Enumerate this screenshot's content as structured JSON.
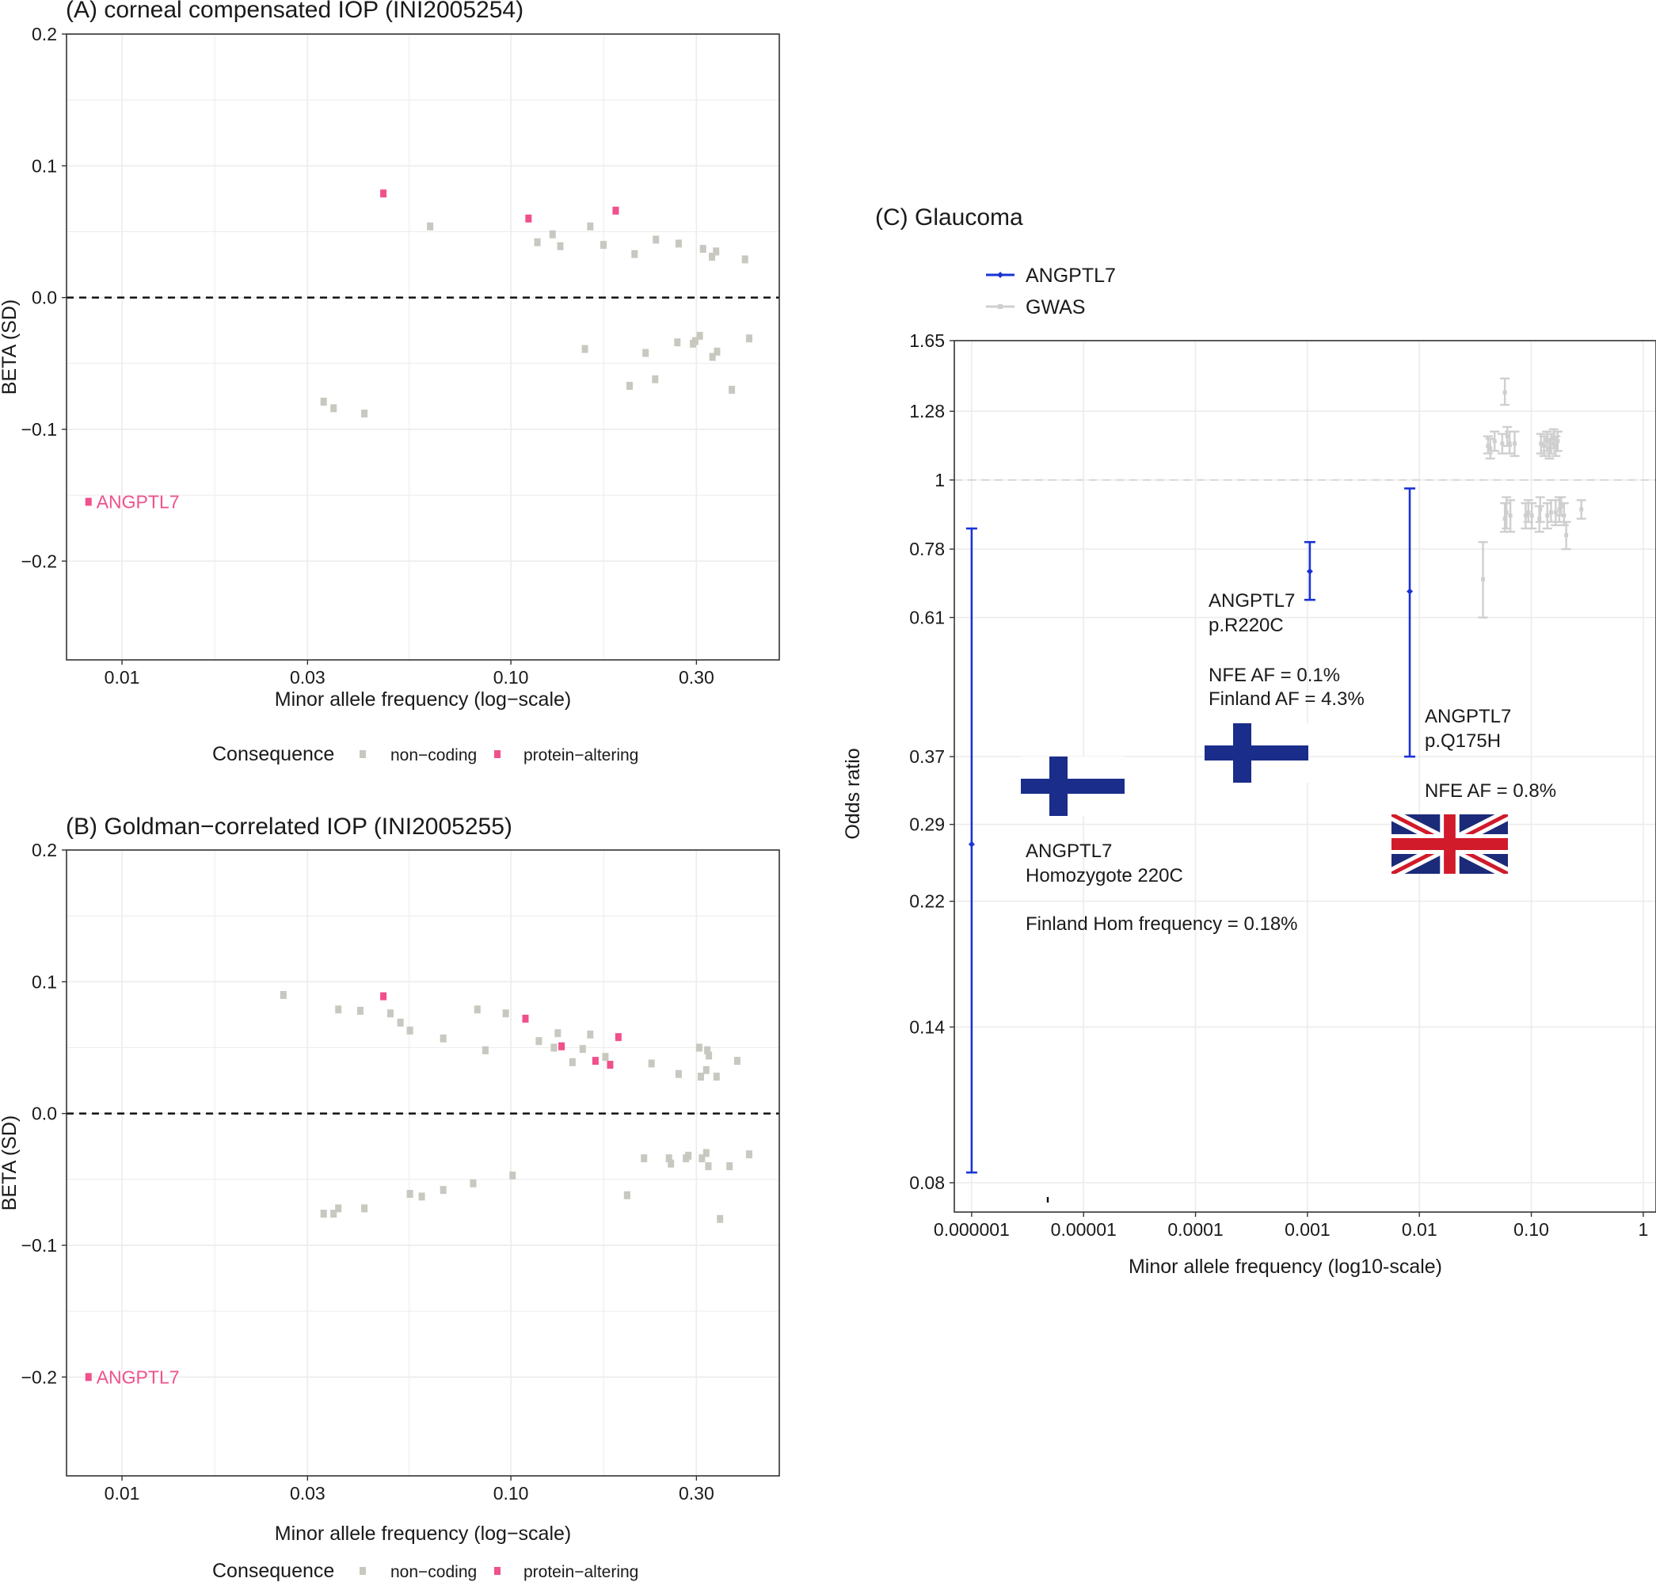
{
  "colors": {
    "non_coding": "#c8c8c0",
    "protein_altering": "#f0508c",
    "angptl7_line": "#1a33d6",
    "gwas_line": "#cfcfcf",
    "finland_blue": "#1a2d8a",
    "uk_blue": "#1c2a7a",
    "uk_red": "#d11a2a",
    "grid": "#ececec"
  },
  "legend": {
    "title": "Consequence",
    "items": [
      {
        "key": "non-coding",
        "label": "non−coding"
      },
      {
        "key": "protein-altering",
        "label": "protein−altering"
      }
    ]
  },
  "flags": [
    {
      "icon": "finland-flag-icon",
      "near": "ANGPTL7 Homozygote 220C"
    },
    {
      "icon": "finland-flag-icon",
      "near": "ANGPTL7 p.R220C"
    },
    {
      "icon": "uk-flag-icon",
      "near": "ANGPTL7 p.Q175H"
    }
  ],
  "chart_data": [
    {
      "id": "A",
      "type": "scatter",
      "title": "(A) corneal compensated IOP (INI2005254)",
      "xlabel": "Minor allele frequency (log−scale)",
      "ylabel": "BETA (SD)",
      "x_scale": "log10",
      "xlim": [
        0.0072,
        0.49
      ],
      "ylim": [
        -0.275,
        0.2
      ],
      "x_ticks": [
        {
          "value": 0.01,
          "label": "0.01"
        },
        {
          "value": 0.03,
          "label": "0.03"
        },
        {
          "value": 0.1,
          "label": "0.10"
        },
        {
          "value": 0.3,
          "label": "0.30"
        }
      ],
      "y_ticks": [
        {
          "value": 0.2,
          "label": "0.2"
        },
        {
          "value": 0.1,
          "label": "0.1"
        },
        {
          "value": 0.0,
          "label": "0.0"
        },
        {
          "value": -0.1,
          "label": "−0.1"
        },
        {
          "value": -0.2,
          "label": "−0.2"
        }
      ],
      "reference_line_y": 0,
      "grid": true,
      "legend_position": "bottom",
      "points": [
        {
          "x": 0.0082,
          "y": -0.155,
          "c": "protein-altering",
          "label": "ANGPTL7"
        },
        {
          "x": 0.047,
          "y": 0.079,
          "c": "protein-altering"
        },
        {
          "x": 0.111,
          "y": 0.06,
          "c": "protein-altering"
        },
        {
          "x": 0.186,
          "y": 0.066,
          "c": "protein-altering"
        },
        {
          "x": 0.062,
          "y": 0.054,
          "c": "non-coding"
        },
        {
          "x": 0.117,
          "y": 0.042,
          "c": "non-coding"
        },
        {
          "x": 0.128,
          "y": 0.048,
          "c": "non-coding"
        },
        {
          "x": 0.134,
          "y": 0.039,
          "c": "non-coding"
        },
        {
          "x": 0.16,
          "y": 0.054,
          "c": "non-coding"
        },
        {
          "x": 0.173,
          "y": 0.04,
          "c": "non-coding"
        },
        {
          "x": 0.208,
          "y": 0.033,
          "c": "non-coding"
        },
        {
          "x": 0.236,
          "y": 0.044,
          "c": "non-coding"
        },
        {
          "x": 0.27,
          "y": 0.041,
          "c": "non-coding"
        },
        {
          "x": 0.312,
          "y": 0.037,
          "c": "non-coding"
        },
        {
          "x": 0.329,
          "y": 0.031,
          "c": "non-coding"
        },
        {
          "x": 0.337,
          "y": 0.035,
          "c": "non-coding"
        },
        {
          "x": 0.4,
          "y": 0.029,
          "c": "non-coding"
        },
        {
          "x": 0.033,
          "y": -0.079,
          "c": "non-coding"
        },
        {
          "x": 0.035,
          "y": -0.084,
          "c": "non-coding"
        },
        {
          "x": 0.042,
          "y": -0.088,
          "c": "non-coding"
        },
        {
          "x": 0.155,
          "y": -0.039,
          "c": "non-coding"
        },
        {
          "x": 0.202,
          "y": -0.067,
          "c": "non-coding"
        },
        {
          "x": 0.222,
          "y": -0.042,
          "c": "non-coding"
        },
        {
          "x": 0.235,
          "y": -0.062,
          "c": "non-coding"
        },
        {
          "x": 0.268,
          "y": -0.034,
          "c": "non-coding"
        },
        {
          "x": 0.294,
          "y": -0.035,
          "c": "non-coding"
        },
        {
          "x": 0.298,
          "y": -0.033,
          "c": "non-coding"
        },
        {
          "x": 0.306,
          "y": -0.029,
          "c": "non-coding"
        },
        {
          "x": 0.33,
          "y": -0.045,
          "c": "non-coding"
        },
        {
          "x": 0.339,
          "y": -0.041,
          "c": "non-coding"
        },
        {
          "x": 0.37,
          "y": -0.07,
          "c": "non-coding"
        },
        {
          "x": 0.41,
          "y": -0.031,
          "c": "non-coding"
        }
      ]
    },
    {
      "id": "B",
      "type": "scatter",
      "title": "(B) Goldman−correlated IOP (INI2005255)",
      "xlabel": "Minor allele frequency (log−scale)",
      "ylabel": "BETA (SD)",
      "x_scale": "log10",
      "xlim": [
        0.0072,
        0.49
      ],
      "ylim": [
        -0.275,
        0.2
      ],
      "x_ticks": [
        {
          "value": 0.01,
          "label": "0.01"
        },
        {
          "value": 0.03,
          "label": "0.03"
        },
        {
          "value": 0.1,
          "label": "0.10"
        },
        {
          "value": 0.3,
          "label": "0.30"
        }
      ],
      "y_ticks": [
        {
          "value": 0.2,
          "label": "0.2"
        },
        {
          "value": 0.1,
          "label": "0.1"
        },
        {
          "value": 0.0,
          "label": "0.0"
        },
        {
          "value": -0.1,
          "label": "−0.1"
        },
        {
          "value": -0.2,
          "label": "−0.2"
        }
      ],
      "reference_line_y": 0,
      "grid": true,
      "legend_position": "bottom",
      "points": [
        {
          "x": 0.0082,
          "y": -0.2,
          "c": "protein-altering",
          "label": "ANGPTL7"
        },
        {
          "x": 0.047,
          "y": 0.089,
          "c": "protein-altering"
        },
        {
          "x": 0.109,
          "y": 0.072,
          "c": "protein-altering"
        },
        {
          "x": 0.135,
          "y": 0.051,
          "c": "protein-altering"
        },
        {
          "x": 0.165,
          "y": 0.04,
          "c": "protein-altering"
        },
        {
          "x": 0.18,
          "y": 0.037,
          "c": "protein-altering"
        },
        {
          "x": 0.189,
          "y": 0.058,
          "c": "protein-altering"
        },
        {
          "x": 0.026,
          "y": 0.09,
          "c": "non-coding"
        },
        {
          "x": 0.036,
          "y": 0.079,
          "c": "non-coding"
        },
        {
          "x": 0.041,
          "y": 0.078,
          "c": "non-coding"
        },
        {
          "x": 0.049,
          "y": 0.076,
          "c": "non-coding"
        },
        {
          "x": 0.052,
          "y": 0.069,
          "c": "non-coding"
        },
        {
          "x": 0.055,
          "y": 0.063,
          "c": "non-coding"
        },
        {
          "x": 0.067,
          "y": 0.057,
          "c": "non-coding"
        },
        {
          "x": 0.082,
          "y": 0.079,
          "c": "non-coding"
        },
        {
          "x": 0.086,
          "y": 0.048,
          "c": "non-coding"
        },
        {
          "x": 0.097,
          "y": 0.076,
          "c": "non-coding"
        },
        {
          "x": 0.118,
          "y": 0.055,
          "c": "non-coding"
        },
        {
          "x": 0.129,
          "y": 0.05,
          "c": "non-coding"
        },
        {
          "x": 0.132,
          "y": 0.061,
          "c": "non-coding"
        },
        {
          "x": 0.144,
          "y": 0.039,
          "c": "non-coding"
        },
        {
          "x": 0.153,
          "y": 0.049,
          "c": "non-coding"
        },
        {
          "x": 0.16,
          "y": 0.06,
          "c": "non-coding"
        },
        {
          "x": 0.175,
          "y": 0.043,
          "c": "non-coding"
        },
        {
          "x": 0.23,
          "y": 0.038,
          "c": "non-coding"
        },
        {
          "x": 0.27,
          "y": 0.03,
          "c": "non-coding"
        },
        {
          "x": 0.305,
          "y": 0.05,
          "c": "non-coding"
        },
        {
          "x": 0.308,
          "y": 0.028,
          "c": "non-coding"
        },
        {
          "x": 0.318,
          "y": 0.033,
          "c": "non-coding"
        },
        {
          "x": 0.32,
          "y": 0.048,
          "c": "non-coding"
        },
        {
          "x": 0.323,
          "y": 0.044,
          "c": "non-coding"
        },
        {
          "x": 0.338,
          "y": 0.028,
          "c": "non-coding"
        },
        {
          "x": 0.382,
          "y": 0.04,
          "c": "non-coding"
        },
        {
          "x": 0.033,
          "y": -0.076,
          "c": "non-coding"
        },
        {
          "x": 0.035,
          "y": -0.076,
          "c": "non-coding"
        },
        {
          "x": 0.036,
          "y": -0.072,
          "c": "non-coding"
        },
        {
          "x": 0.042,
          "y": -0.072,
          "c": "non-coding"
        },
        {
          "x": 0.055,
          "y": -0.061,
          "c": "non-coding"
        },
        {
          "x": 0.059,
          "y": -0.063,
          "c": "non-coding"
        },
        {
          "x": 0.067,
          "y": -0.058,
          "c": "non-coding"
        },
        {
          "x": 0.08,
          "y": -0.053,
          "c": "non-coding"
        },
        {
          "x": 0.101,
          "y": -0.047,
          "c": "non-coding"
        },
        {
          "x": 0.199,
          "y": -0.062,
          "c": "non-coding"
        },
        {
          "x": 0.22,
          "y": -0.034,
          "c": "non-coding"
        },
        {
          "x": 0.255,
          "y": -0.034,
          "c": "non-coding"
        },
        {
          "x": 0.258,
          "y": -0.038,
          "c": "non-coding"
        },
        {
          "x": 0.282,
          "y": -0.034,
          "c": "non-coding"
        },
        {
          "x": 0.286,
          "y": -0.032,
          "c": "non-coding"
        },
        {
          "x": 0.31,
          "y": -0.034,
          "c": "non-coding"
        },
        {
          "x": 0.318,
          "y": -0.03,
          "c": "non-coding"
        },
        {
          "x": 0.322,
          "y": -0.04,
          "c": "non-coding"
        },
        {
          "x": 0.345,
          "y": -0.08,
          "c": "non-coding"
        },
        {
          "x": 0.365,
          "y": -0.04,
          "c": "non-coding"
        },
        {
          "x": 0.41,
          "y": -0.031,
          "c": "non-coding"
        }
      ]
    },
    {
      "id": "C",
      "type": "scatter",
      "title": "(C) Glaucoma",
      "xlabel": "Minor allele frequency (log10-scale)",
      "ylabel": "Odds ratio",
      "x_scale": "log10",
      "y_scale": "log",
      "xlim": [
        7e-07,
        1.3
      ],
      "ylim": [
        0.072,
        1.65
      ],
      "x_ticks": [
        {
          "value": 1e-06,
          "label": "0.000001"
        },
        {
          "value": 1e-05,
          "label": "0.00001"
        },
        {
          "value": 0.0001,
          "label": "0.0001"
        },
        {
          "value": 0.001,
          "label": "0.001"
        },
        {
          "value": 0.01,
          "label": "0.01"
        },
        {
          "value": 0.1,
          "label": "0.10"
        },
        {
          "value": 1,
          "label": "1"
        }
      ],
      "y_ticks": [
        {
          "value": 0.08,
          "label": "0.08"
        },
        {
          "value": 0.14,
          "label": "0.14"
        },
        {
          "value": 0.22,
          "label": "0.22"
        },
        {
          "value": 0.29,
          "label": "0.29"
        },
        {
          "value": 0.37,
          "label": "0.37"
        },
        {
          "value": 0.61,
          "label": "0.61"
        },
        {
          "value": 0.78,
          "label": "0.78"
        },
        {
          "value": 1,
          "label": "1"
        },
        {
          "value": 1.28,
          "label": "1.28"
        },
        {
          "value": 1.65,
          "label": "1.65"
        }
      ],
      "reference_line_y": 1,
      "grid": true,
      "legend_position": "top-left",
      "series": [
        {
          "name": "ANGPTL7",
          "points": [
            {
              "x": 1e-06,
              "or": 0.27,
              "lo": 0.083,
              "hi": 0.84
            },
            {
              "x": 0.00105,
              "or": 0.72,
              "lo": 0.65,
              "hi": 0.8
            },
            {
              "x": 0.0082,
              "or": 0.67,
              "lo": 0.37,
              "hi": 0.97
            }
          ]
        },
        {
          "name": "GWAS",
          "points": [
            {
              "x": 0.037,
              "or": 0.7,
              "lo": 0.61,
              "hi": 0.8
            },
            {
              "x": 0.041,
              "or": 1.13,
              "lo": 1.1,
              "hi": 1.17
            },
            {
              "x": 0.043,
              "or": 1.12,
              "lo": 1.08,
              "hi": 1.16
            },
            {
              "x": 0.047,
              "or": 1.15,
              "lo": 1.11,
              "hi": 1.19
            },
            {
              "x": 0.055,
              "or": 1.14,
              "lo": 1.1,
              "hi": 1.18
            },
            {
              "x": 0.058,
              "or": 1.37,
              "lo": 1.31,
              "hi": 1.44
            },
            {
              "x": 0.061,
              "or": 1.17,
              "lo": 1.13,
              "hi": 1.21
            },
            {
              "x": 0.064,
              "or": 1.14,
              "lo": 1.1,
              "hi": 1.19
            },
            {
              "x": 0.071,
              "or": 1.14,
              "lo": 1.09,
              "hi": 1.19
            },
            {
              "x": 0.058,
              "or": 0.87,
              "lo": 0.83,
              "hi": 0.92
            },
            {
              "x": 0.06,
              "or": 0.89,
              "lo": 0.84,
              "hi": 0.94
            },
            {
              "x": 0.065,
              "or": 0.88,
              "lo": 0.83,
              "hi": 0.93
            },
            {
              "x": 0.089,
              "or": 0.88,
              "lo": 0.84,
              "hi": 0.92
            },
            {
              "x": 0.094,
              "or": 0.89,
              "lo": 0.86,
              "hi": 0.93
            },
            {
              "x": 0.101,
              "or": 0.88,
              "lo": 0.84,
              "hi": 0.92
            },
            {
              "x": 0.12,
              "or": 0.9,
              "lo": 0.86,
              "hi": 0.94
            },
            {
              "x": 0.118,
              "or": 0.87,
              "lo": 0.83,
              "hi": 0.91
            },
            {
              "x": 0.139,
              "or": 0.88,
              "lo": 0.84,
              "hi": 0.92
            },
            {
              "x": 0.15,
              "or": 0.89,
              "lo": 0.86,
              "hi": 0.93
            },
            {
              "x": 0.165,
              "or": 0.89,
              "lo": 0.85,
              "hi": 0.93
            },
            {
              "x": 0.178,
              "or": 0.9,
              "lo": 0.86,
              "hi": 0.94
            },
            {
              "x": 0.185,
              "or": 0.91,
              "lo": 0.88,
              "hi": 0.94
            },
            {
              "x": 0.196,
              "or": 0.88,
              "lo": 0.85,
              "hi": 0.92
            },
            {
              "x": 0.205,
              "or": 0.82,
              "lo": 0.78,
              "hi": 0.86
            },
            {
              "x": 0.122,
              "or": 1.14,
              "lo": 1.1,
              "hi": 1.18
            },
            {
              "x": 0.13,
              "or": 1.13,
              "lo": 1.09,
              "hi": 1.17
            },
            {
              "x": 0.138,
              "or": 1.15,
              "lo": 1.11,
              "hi": 1.19
            },
            {
              "x": 0.145,
              "or": 1.12,
              "lo": 1.08,
              "hi": 1.16
            },
            {
              "x": 0.15,
              "or": 1.14,
              "lo": 1.1,
              "hi": 1.18
            },
            {
              "x": 0.158,
              "or": 1.16,
              "lo": 1.12,
              "hi": 1.2
            },
            {
              "x": 0.165,
              "or": 1.13,
              "lo": 1.09,
              "hi": 1.17
            },
            {
              "x": 0.172,
              "or": 1.15,
              "lo": 1.11,
              "hi": 1.19
            },
            {
              "x": 0.28,
              "or": 0.9,
              "lo": 0.87,
              "hi": 0.93
            }
          ]
        }
      ],
      "annotations": [
        {
          "lines": [
            "ANGPTL7",
            "p.R220C",
            "",
            "NFE AF = 0.1%",
            "Finland AF = 4.3%"
          ]
        },
        {
          "lines": [
            "ANGPTL7",
            "p.Q175H",
            "",
            "NFE AF = 0.8%"
          ]
        },
        {
          "lines": [
            "ANGPTL7",
            "Homozygote 220C",
            "",
            "Finland Hom frequency = 0.18%"
          ]
        }
      ]
    }
  ]
}
